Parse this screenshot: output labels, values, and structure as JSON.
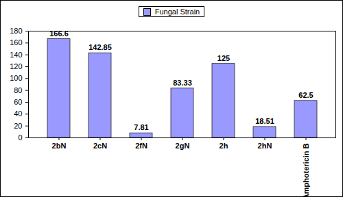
{
  "chart_data": {
    "type": "bar",
    "categories": [
      "2bN",
      "2cN",
      "2fN",
      "2gN",
      "2h",
      "2hN",
      "Amphotericin B"
    ],
    "series": [
      {
        "name": "Fungal Strain",
        "color": "#9999ff",
        "values": [
          166.6,
          142.85,
          7.81,
          83.33,
          125,
          18.51,
          62.5
        ]
      }
    ],
    "ylim": [
      0,
      180
    ],
    "yticks": [
      0,
      20,
      40,
      60,
      80,
      100,
      120,
      140,
      160,
      180
    ],
    "grid": false,
    "legend": "top",
    "data_labels": true
  }
}
